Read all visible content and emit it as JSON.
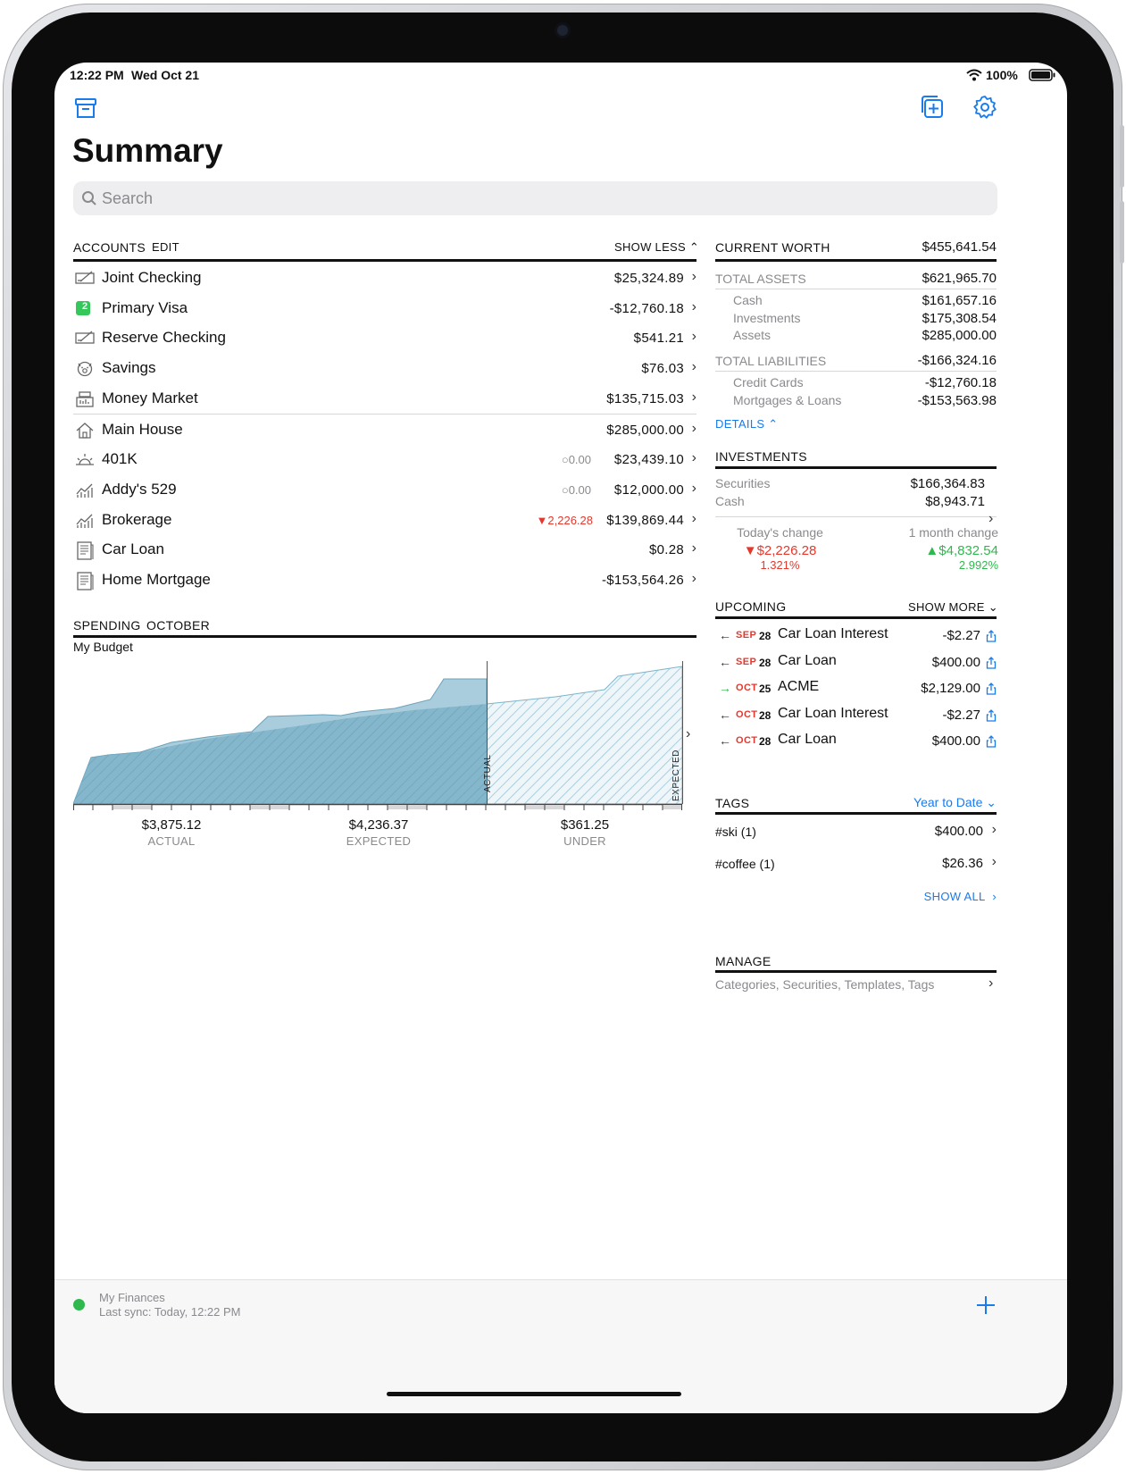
{
  "status": {
    "time": "12:22 PM",
    "date": "Wed Oct 21",
    "battery": "100%"
  },
  "title": "Summary",
  "search": {
    "placeholder": "Search"
  },
  "accounts": {
    "header": "ACCOUNTS",
    "edit": "EDIT",
    "toggle": "SHOW LESS",
    "items": [
      {
        "name": "Joint Checking",
        "value": "$25,324.89",
        "icon": "checkbook-icon"
      },
      {
        "name": "Primary Visa",
        "value": "-$12,760.18",
        "icon": "credit-card-badge-icon",
        "badge": "2"
      },
      {
        "name": "Reserve Checking",
        "value": "$541.21",
        "icon": "checkbook-icon"
      },
      {
        "name": "Savings",
        "value": "$76.03",
        "icon": "piggy-bank-icon"
      },
      {
        "name": "Money Market",
        "value": "$135,715.03",
        "icon": "cash-register-icon"
      },
      {
        "name": "Main House",
        "value": "$285,000.00",
        "icon": "house-icon"
      },
      {
        "name": "401K",
        "value": "$23,439.10",
        "icon": "sunrise-icon",
        "change": "0.00"
      },
      {
        "name": "Addy's 529",
        "value": "$12,000.00",
        "icon": "chart-icon",
        "change": "0.00"
      },
      {
        "name": "Brokerage",
        "value": "$139,869.44",
        "icon": "chart-icon",
        "change": "2,226.28"
      },
      {
        "name": "Car Loan",
        "value": "$0.28",
        "icon": "ledger-icon"
      },
      {
        "name": "Home Mortgage",
        "value": "-$153,564.26",
        "icon": "ledger-icon"
      }
    ]
  },
  "spending": {
    "header": "SPENDING",
    "month": "OCTOBER",
    "budget": "My Budget",
    "actual_marker": "ACTUAL",
    "expected_marker": "EXPECTED",
    "stats": [
      {
        "value": "$3,875.12",
        "label": "ACTUAL"
      },
      {
        "value": "$4,236.37",
        "label": "EXPECTED"
      },
      {
        "value": "$361.25",
        "label": "UNDER"
      }
    ]
  },
  "worth": {
    "header": "CURRENT WORTH",
    "total": "$455,641.54",
    "assets_label": "TOTAL ASSETS",
    "assets_total": "$621,965.70",
    "assets": [
      {
        "name": "Cash",
        "value": "$161,657.16"
      },
      {
        "name": "Investments",
        "value": "$175,308.54"
      },
      {
        "name": "Assets",
        "value": "$285,000.00"
      }
    ],
    "liab_label": "TOTAL LIABILITIES",
    "liab_total": "-$166,324.16",
    "liabilities": [
      {
        "name": "Credit Cards",
        "value": "-$12,760.18"
      },
      {
        "name": "Mortgages & Loans",
        "value": "-$153,563.98"
      }
    ],
    "details": "DETAILS"
  },
  "investments": {
    "header": "INVESTMENTS",
    "rows": [
      {
        "name": "Securities",
        "value": "$166,364.83"
      },
      {
        "name": "Cash",
        "value": "$8,943.71"
      }
    ],
    "today_label": "Today's change",
    "today_value": "$2,226.28",
    "today_pct": "1.321%",
    "month_label": "1 month change",
    "month_value": "$4,832.54",
    "month_pct": "2.992%"
  },
  "upcoming": {
    "header": "UPCOMING",
    "toggle": "SHOW MORE",
    "items": [
      {
        "month": "SEP",
        "day": "28",
        "name": "Car Loan Interest",
        "value": "-$2.27",
        "dir": "in"
      },
      {
        "month": "SEP",
        "day": "28",
        "name": "Car Loan",
        "value": "$400.00",
        "dir": "in"
      },
      {
        "month": "OCT",
        "day": "25",
        "name": "ACME",
        "value": "$2,129.00",
        "dir": "out"
      },
      {
        "month": "OCT",
        "day": "28",
        "name": "Car Loan Interest",
        "value": "-$2.27",
        "dir": "in"
      },
      {
        "month": "OCT",
        "day": "28",
        "name": "Car Loan",
        "value": "$400.00",
        "dir": "in"
      }
    ]
  },
  "tags": {
    "header": "TAGS",
    "period": "Year to Date",
    "items": [
      {
        "name": "#ski (1)",
        "value": "$400.00"
      },
      {
        "name": "#coffee (1)",
        "value": "$26.36"
      }
    ],
    "show_all": "SHOW ALL"
  },
  "manage": {
    "header": "MANAGE",
    "subtitle": "Categories, Securities, Templates, Tags"
  },
  "footer": {
    "file": "My Finances",
    "sync": "Last sync: Today, 12:22 PM"
  },
  "colors": {
    "accent": "#1a7bea",
    "negative": "#e5382d",
    "positive": "#2fb84e",
    "chart": "#8fbfd3"
  }
}
